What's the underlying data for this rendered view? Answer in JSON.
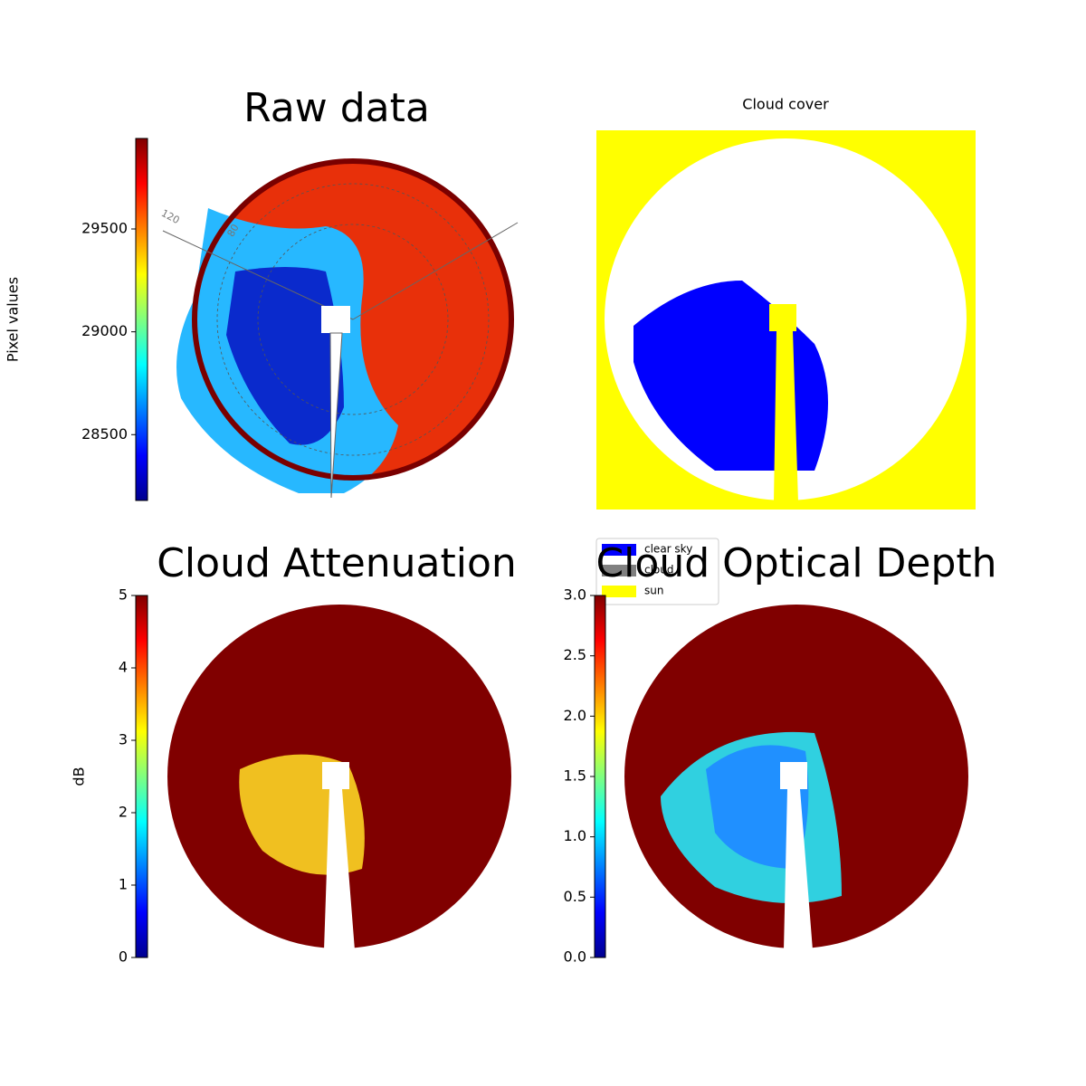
{
  "chart_data": [
    {
      "type": "image",
      "title": "Raw data",
      "colorbar_label": "Pixel values",
      "clim": [
        28180,
        29940
      ],
      "cticks": [
        28500,
        29000,
        29500
      ],
      "colormap": "jet",
      "polar_tick_labels": [
        "120",
        "80"
      ]
    },
    {
      "type": "image",
      "title": "Cloud cover",
      "legend": [
        {
          "name": "clear sky",
          "color": "#0000ff"
        },
        {
          "name": "cloud",
          "color": "#808080"
        },
        {
          "name": "sun",
          "color": "#ffff00"
        }
      ]
    },
    {
      "type": "image",
      "title": "Cloud Attenuation",
      "colorbar_label": "dB",
      "clim": [
        0,
        5
      ],
      "cticks": [
        0,
        1,
        2,
        3,
        4,
        5
      ],
      "colormap": "jet"
    },
    {
      "type": "image",
      "title": "Cloud Optical Depth",
      "clim": [
        0,
        3
      ],
      "cticks": [
        {
          "value": 0,
          "label": "0.0"
        },
        {
          "value": 0.5,
          "label": "0.5"
        },
        {
          "value": 1,
          "label": "1.0"
        },
        {
          "value": 1.5,
          "label": "1.5"
        },
        {
          "value": 2,
          "label": "2.0"
        },
        {
          "value": 2.5,
          "label": "2.5"
        },
        {
          "value": 3,
          "label": "3.0"
        }
      ],
      "colormap": "jet"
    }
  ]
}
